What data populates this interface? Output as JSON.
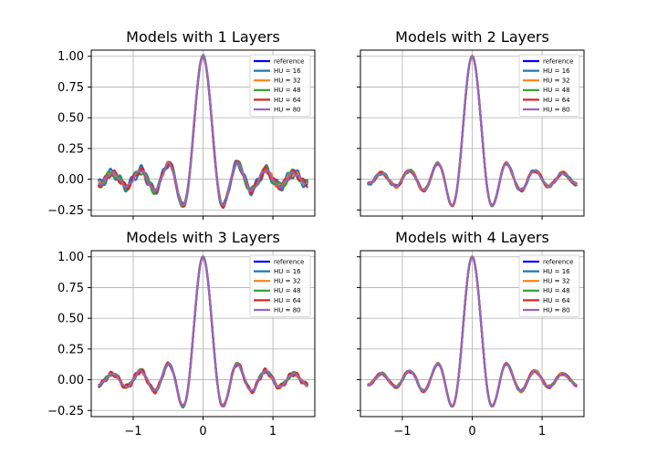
{
  "chart_data": {
    "type": "line",
    "function": "sinc",
    "xlim": [
      -1.6,
      1.6
    ],
    "ylim": [
      -0.3,
      1.05
    ],
    "xticks": [
      -1,
      0,
      1
    ],
    "xtick_labels": [
      "−1",
      "0",
      "1"
    ],
    "yticks": [
      1.0,
      0.75,
      0.5,
      0.25,
      0.0,
      -0.25
    ],
    "ytick_labels": [
      "1.00",
      "0.75",
      "0.50",
      "0.25",
      "0.00",
      "−0.25"
    ],
    "grid": true,
    "legend_position": "upper right",
    "x_domain": [
      -1.5,
      1.5
    ],
    "panels": [
      {
        "title": "Models with 1 Layers",
        "series": [
          {
            "name": "reference",
            "color": "#0000ff",
            "amp": 0.0,
            "freq": 0
          },
          {
            "name": "HU = 16",
            "color": "#1f77b4",
            "amp": 0.04,
            "freq": 6.7
          },
          {
            "name": "HU = 32",
            "color": "#ff7f0e",
            "amp": 0.02,
            "freq": 8.1
          },
          {
            "name": "HU = 48",
            "color": "#2ca02c",
            "amp": 0.03,
            "freq": 5.3
          },
          {
            "name": "HU = 64",
            "color": "#d62728",
            "amp": 0.025,
            "freq": 7.4
          },
          {
            "name": "HU = 80",
            "color": "#9467bd",
            "amp": 0.01,
            "freq": 9.0
          }
        ]
      },
      {
        "title": "Models with 2 Layers",
        "series": [
          {
            "name": "reference",
            "color": "#0000ff",
            "amp": 0.0,
            "freq": 0
          },
          {
            "name": "HU = 16",
            "color": "#1f77b4",
            "amp": 0.012,
            "freq": 7.2
          },
          {
            "name": "HU = 32",
            "color": "#ff7f0e",
            "amp": 0.015,
            "freq": 6.1
          },
          {
            "name": "HU = 48",
            "color": "#2ca02c",
            "amp": 0.008,
            "freq": 8.3
          },
          {
            "name": "HU = 64",
            "color": "#d62728",
            "amp": 0.01,
            "freq": 5.7
          },
          {
            "name": "HU = 80",
            "color": "#9467bd",
            "amp": 0.005,
            "freq": 9.2
          }
        ]
      },
      {
        "title": "Models with 3 Layers",
        "series": [
          {
            "name": "reference",
            "color": "#0000ff",
            "amp": 0.0,
            "freq": 0
          },
          {
            "name": "HU = 16",
            "color": "#1f77b4",
            "amp": 0.01,
            "freq": 6.4
          },
          {
            "name": "HU = 32",
            "color": "#ff7f0e",
            "amp": 0.012,
            "freq": 7.7
          },
          {
            "name": "HU = 48",
            "color": "#2ca02c",
            "amp": 0.015,
            "freq": 5.9
          },
          {
            "name": "HU = 64",
            "color": "#d62728",
            "amp": 0.02,
            "freq": 8.6
          },
          {
            "name": "HU = 80",
            "color": "#9467bd",
            "amp": 0.005,
            "freq": 9.4
          }
        ]
      },
      {
        "title": "Models with 4 Layers",
        "series": [
          {
            "name": "reference",
            "color": "#0000ff",
            "amp": 0.0,
            "freq": 0
          },
          {
            "name": "HU = 16",
            "color": "#1f77b4",
            "amp": 0.008,
            "freq": 7.1
          },
          {
            "name": "HU = 32",
            "color": "#ff7f0e",
            "amp": 0.012,
            "freq": 6.3
          },
          {
            "name": "HU = 48",
            "color": "#2ca02c",
            "amp": 0.008,
            "freq": 8.8
          },
          {
            "name": "HU = 64",
            "color": "#d62728",
            "amp": 0.01,
            "freq": 5.5
          },
          {
            "name": "HU = 80",
            "color": "#9467bd",
            "amp": 0.004,
            "freq": 9.6
          }
        ]
      }
    ]
  }
}
